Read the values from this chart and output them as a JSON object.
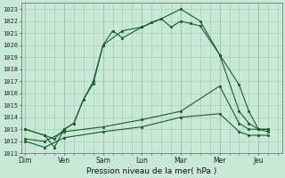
{
  "xlabel": "Pression niveau de la mer( hPa )",
  "ylim": [
    1011,
    1023.5
  ],
  "yticks": [
    1011,
    1012,
    1013,
    1014,
    1015,
    1016,
    1017,
    1018,
    1019,
    1020,
    1021,
    1022,
    1023
  ],
  "day_labels": [
    "Dim",
    "Ven",
    "Sam",
    "Lun",
    "Mar",
    "Mer",
    "Jeu"
  ],
  "day_positions": [
    0,
    1,
    2,
    3,
    4,
    5,
    6
  ],
  "xlim": [
    -0.1,
    6.6
  ],
  "background_color": "#c8e8d8",
  "grid_color": "#a0c8b0",
  "line_color": "#1a5c2a",
  "series1_x": [
    0.0,
    0.5,
    0.75,
    1.0,
    1.25,
    1.5,
    1.75,
    2.0,
    2.25,
    2.5,
    3.0,
    3.25,
    3.5,
    3.75,
    4.0,
    4.25,
    4.5,
    5.0,
    5.5,
    5.75,
    6.0,
    6.25
  ],
  "series1_y": [
    1013.0,
    1012.5,
    1012.2,
    1013.0,
    1013.5,
    1015.5,
    1016.8,
    1020.0,
    1021.2,
    1020.6,
    1021.5,
    1021.9,
    1022.2,
    1021.5,
    1022.0,
    1021.8,
    1021.6,
    1019.2,
    1016.7,
    1014.5,
    1013.0,
    1013.0
  ],
  "series2_x": [
    0.0,
    0.5,
    0.75,
    1.0,
    1.25,
    1.5,
    1.75,
    2.0,
    2.5,
    3.0,
    3.5,
    4.0,
    4.5,
    5.0,
    5.5,
    5.75,
    6.0,
    6.25
  ],
  "series2_y": [
    1013.0,
    1012.5,
    1011.5,
    1013.0,
    1013.5,
    1015.5,
    1017.0,
    1020.0,
    1021.2,
    1021.5,
    1022.2,
    1023.0,
    1022.0,
    1019.2,
    1014.5,
    1013.5,
    1013.0,
    1013.0
  ],
  "series3_x": [
    0.0,
    0.5,
    1.0,
    2.0,
    3.0,
    4.0,
    5.0,
    5.5,
    5.75,
    6.0,
    6.25
  ],
  "series3_y": [
    1012.2,
    1012.0,
    1012.8,
    1013.2,
    1013.8,
    1014.5,
    1016.6,
    1013.5,
    1013.0,
    1013.0,
    1012.8
  ],
  "series4_x": [
    0.0,
    0.5,
    1.0,
    2.0,
    3.0,
    4.0,
    5.0,
    5.5,
    5.75,
    6.0,
    6.25
  ],
  "series4_y": [
    1012.0,
    1011.5,
    1012.3,
    1012.8,
    1013.2,
    1014.0,
    1014.3,
    1012.8,
    1012.5,
    1012.5,
    1012.5
  ]
}
